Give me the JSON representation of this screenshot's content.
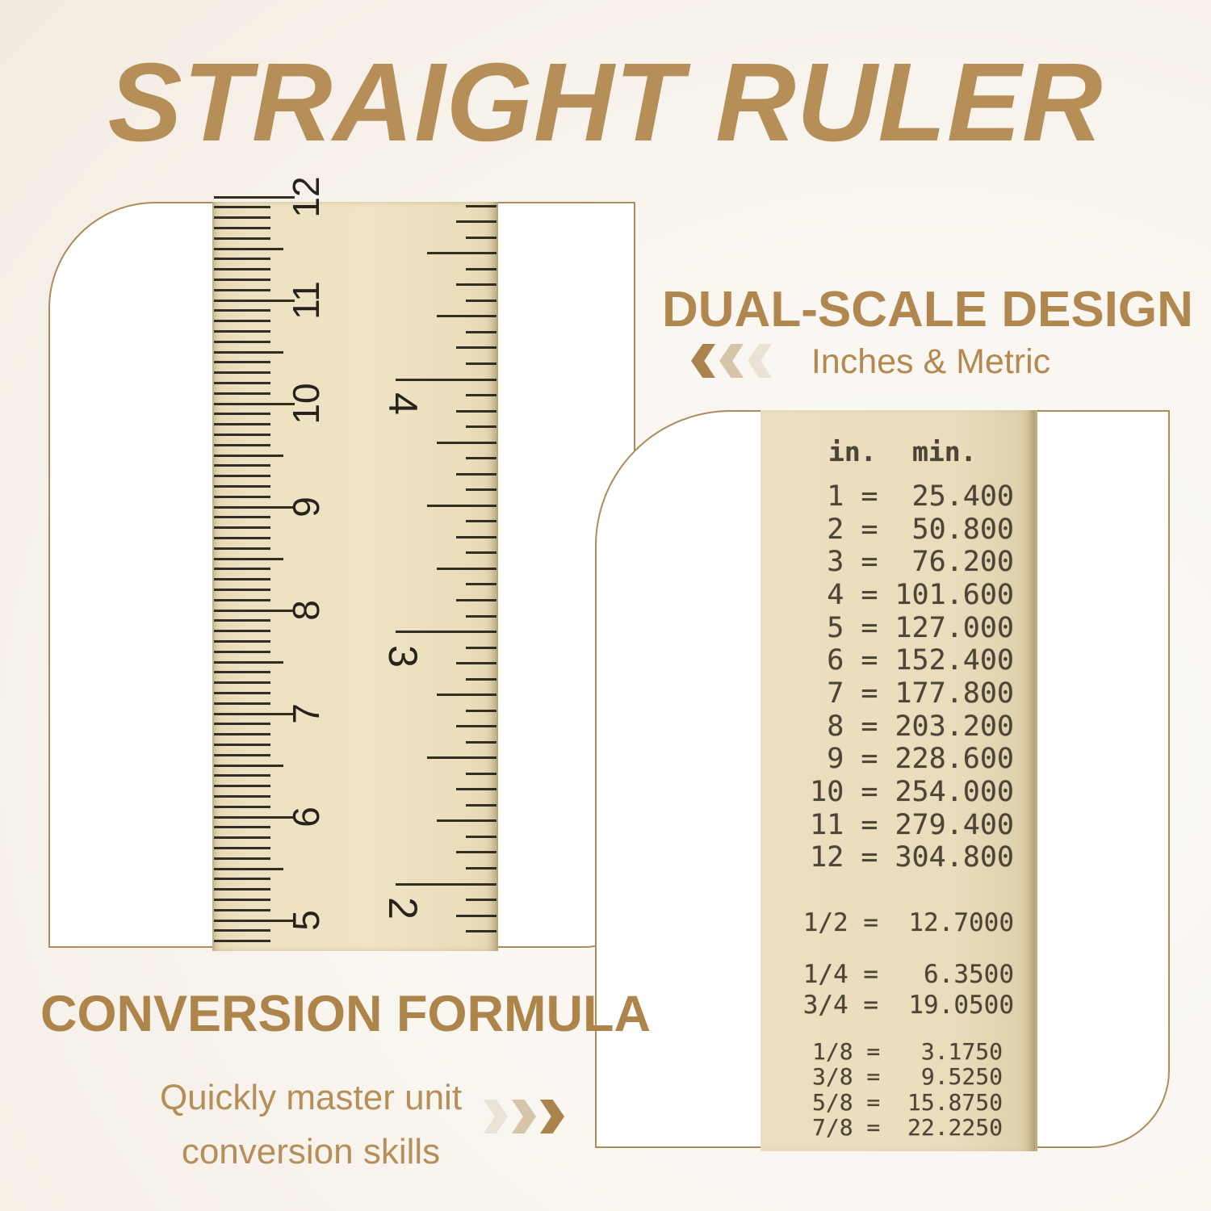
{
  "title": "STRAIGHT RULER",
  "sections": {
    "dual_scale": {
      "heading": "DUAL-SCALE DESIGN",
      "subheading": "Inches & Metric",
      "arrow_icon": "triple-chevron-left"
    },
    "conversion": {
      "heading": "CONVERSION FORMULA",
      "line1": "Quickly master unit",
      "line2": "conversion skills",
      "arrow_icon": "triple-chevron-right"
    }
  },
  "ruler": {
    "cm_numbers": [
      "5",
      "6",
      "7",
      "8",
      "9",
      "10",
      "11",
      "12"
    ],
    "inch_numbers": [
      "2",
      "3",
      "4"
    ]
  },
  "conversion_table": {
    "col_in": "in.",
    "col_mm": "min.",
    "rows": [
      {
        "in": "1",
        "mm": "25.400",
        "text": " 1 =  25.400"
      },
      {
        "in": "2",
        "mm": "50.800",
        "text": " 2 =  50.800"
      },
      {
        "in": "3",
        "mm": "76.200",
        "text": " 3 =  76.200"
      },
      {
        "in": "4",
        "mm": "101.600",
        "text": " 4 = 101.600"
      },
      {
        "in": "5",
        "mm": "127.000",
        "text": " 5 = 127.000"
      },
      {
        "in": "6",
        "mm": "152.400",
        "text": " 6 = 152.400"
      },
      {
        "in": "7",
        "mm": "177.800",
        "text": " 7 = 177.800"
      },
      {
        "in": "8",
        "mm": "203.200",
        "text": " 8 = 203.200"
      },
      {
        "in": "9",
        "mm": "228.600",
        "text": " 9 = 228.600"
      },
      {
        "in": "10",
        "mm": "254.000",
        "text": "10 = 254.000"
      },
      {
        "in": "11",
        "mm": "279.400",
        "text": "11 = 279.400"
      },
      {
        "in": "12",
        "mm": "304.800",
        "text": "12 = 304.800"
      },
      {
        "in": "1/2",
        "mm": "12.7000",
        "text": "1/2 =  12.7000"
      },
      {
        "in": "1/4",
        "mm": "6.3500",
        "text": "1/4 =   6.3500"
      },
      {
        "in": "3/4",
        "mm": "19.0500",
        "text": "3/4 =  19.0500"
      },
      {
        "in": "1/8",
        "mm": "3.1750",
        "text": "1/8 =   3.1750"
      },
      {
        "in": "3/8",
        "mm": "9.5250",
        "text": "3/8 =   9.5250"
      },
      {
        "in": "5/8",
        "mm": "15.8750",
        "text": "5/8 =  15.8750"
      },
      {
        "in": "7/8",
        "mm": "22.2250",
        "text": "7/8 =  22.2250"
      }
    ]
  },
  "colors": {
    "title": "#b68e58",
    "heading": "#b0874e",
    "subheading": "#b3894f",
    "panel_border": "#ac8c5a",
    "ruler_cream": "#ece1c1",
    "tick": "#342d22",
    "table_text": "#4b4437",
    "chevron_dark": "#ab834d",
    "chevron_mid": "#d6c5a9",
    "chevron_pale": "#e9e2d5",
    "background": "#f3ebe1"
  }
}
